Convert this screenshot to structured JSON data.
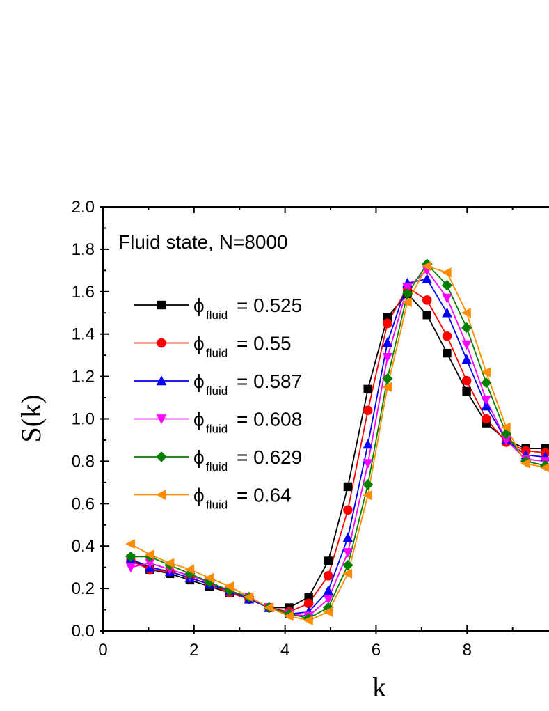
{
  "chart_data": {
    "type": "line",
    "title": "",
    "xlabel": "k",
    "ylabel": "S(k)",
    "annotation": "Fluid state, N=8000",
    "xlim": [
      0,
      9.8
    ],
    "ylim": [
      0.0,
      2.0
    ],
    "x_ticks": [
      "0",
      "2",
      "4",
      "6",
      "8"
    ],
    "y_ticks": [
      "0.0",
      "0.2",
      "0.4",
      "0.6",
      "0.8",
      "1.0",
      "1.2",
      "1.4",
      "1.6",
      "1.8",
      "2.0"
    ],
    "grid": false,
    "legend_position": "left",
    "legend_symbol": "ϕ",
    "legend_subscript": "fluid",
    "x": [
      0.61,
      1.03,
      1.47,
      1.91,
      2.34,
      2.78,
      3.21,
      3.65,
      4.09,
      4.52,
      4.95,
      5.38,
      5.82,
      6.25,
      6.69,
      7.12,
      7.56,
      7.99,
      8.42,
      8.86,
      9.29,
      9.72
    ],
    "series": [
      {
        "name": "= 0.525",
        "color": "#000000",
        "marker": "square",
        "values": [
          0.34,
          0.29,
          0.27,
          0.24,
          0.21,
          0.18,
          0.15,
          0.11,
          0.11,
          0.16,
          0.33,
          0.68,
          1.14,
          1.48,
          1.59,
          1.49,
          1.31,
          1.13,
          0.98,
          0.9,
          0.86,
          0.86
        ]
      },
      {
        "name": "= 0.55",
        "color": "#ff0000",
        "marker": "circle",
        "values": [
          0.33,
          0.29,
          0.28,
          0.25,
          0.22,
          0.18,
          0.15,
          0.11,
          0.09,
          0.13,
          0.26,
          0.57,
          1.04,
          1.45,
          1.62,
          1.56,
          1.39,
          1.18,
          1.0,
          0.89,
          0.85,
          0.84
        ]
      },
      {
        "name": "= 0.587",
        "color": "#0000ff",
        "marker": "triangle-up",
        "values": [
          0.34,
          0.3,
          0.28,
          0.25,
          0.22,
          0.19,
          0.15,
          0.11,
          0.08,
          0.09,
          0.19,
          0.44,
          0.88,
          1.36,
          1.64,
          1.66,
          1.5,
          1.28,
          1.06,
          0.9,
          0.83,
          0.82
        ]
      },
      {
        "name": "= 0.608",
        "color": "#ff00ff",
        "marker": "triangle-down",
        "values": [
          0.3,
          0.32,
          0.29,
          0.26,
          0.23,
          0.19,
          0.16,
          0.11,
          0.08,
          0.07,
          0.15,
          0.37,
          0.79,
          1.29,
          1.62,
          1.7,
          1.57,
          1.35,
          1.09,
          0.9,
          0.81,
          0.8
        ]
      },
      {
        "name": "= 0.629",
        "color": "#008000",
        "marker": "diamond",
        "values": [
          0.35,
          0.35,
          0.31,
          0.27,
          0.23,
          0.19,
          0.16,
          0.11,
          0.08,
          0.06,
          0.11,
          0.31,
          0.69,
          1.19,
          1.59,
          1.73,
          1.63,
          1.43,
          1.17,
          0.93,
          0.8,
          0.78
        ]
      },
      {
        "name": "= 0.64",
        "color": "#ff8c00",
        "marker": "triangle-left",
        "values": [
          0.41,
          0.36,
          0.32,
          0.29,
          0.25,
          0.21,
          0.16,
          0.11,
          0.07,
          0.05,
          0.09,
          0.27,
          0.64,
          1.15,
          1.55,
          1.72,
          1.69,
          1.5,
          1.22,
          0.96,
          0.79,
          0.77
        ]
      }
    ]
  }
}
